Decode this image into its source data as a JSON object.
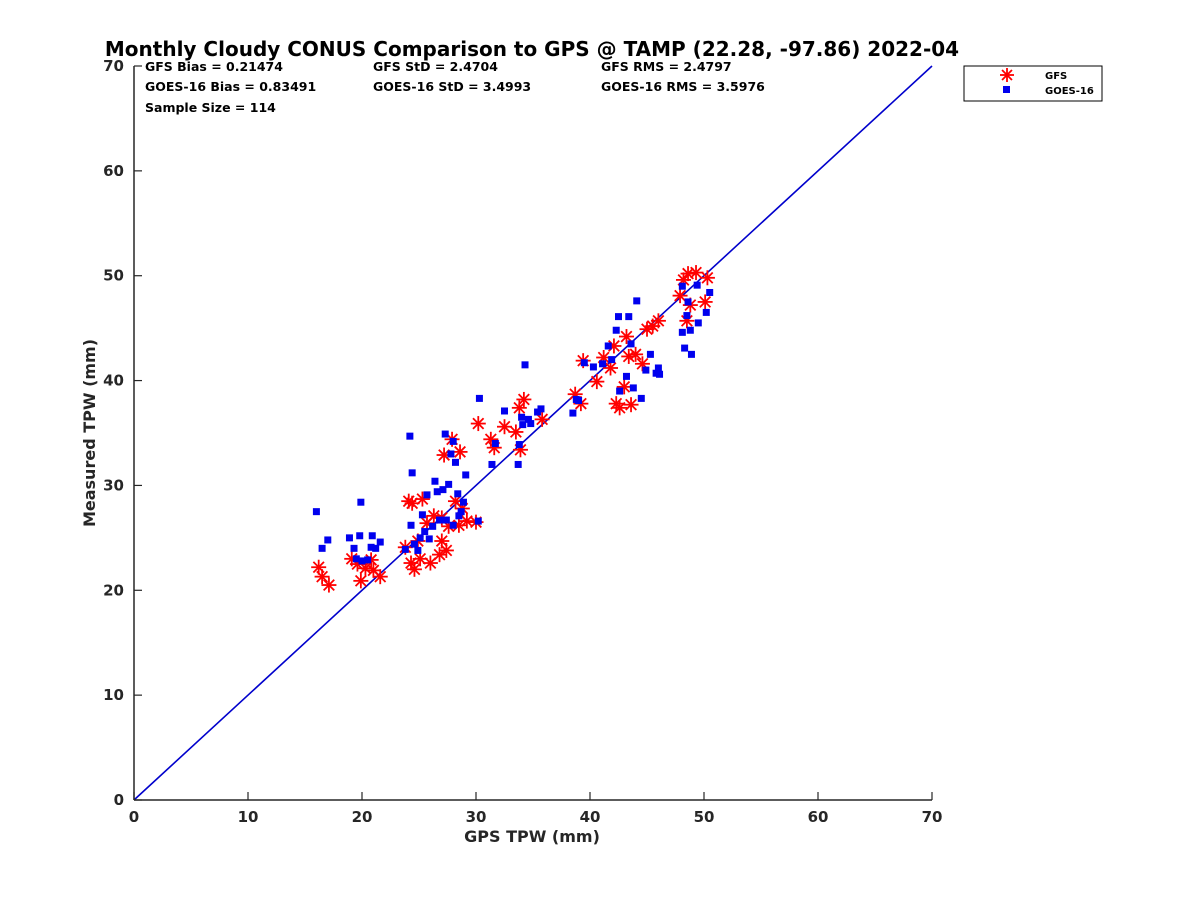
{
  "chart_data": {
    "type": "scatter",
    "title": "Monthly Cloudy CONUS Comparison to GPS @ TAMP (22.28, -97.86) 2022-04",
    "xlabel": "GPS TPW (mm)",
    "ylabel": "Measured TPW (mm)",
    "xlim": [
      0,
      70
    ],
    "ylim": [
      0,
      70
    ],
    "xticks": [
      0,
      10,
      20,
      30,
      40,
      50,
      60,
      70
    ],
    "yticks": [
      0,
      10,
      20,
      30,
      40,
      50,
      60,
      70
    ],
    "grid": false,
    "legend_position": "top-right-outside",
    "stats": [
      "GFS Bias = 0.21474",
      "GFS StD = 2.4704",
      "GFS RMS = 2.4797",
      "GOES-16 Bias = 0.83491",
      "GOES-16 StD = 3.4993",
      "GOES-16 RMS = 3.5976",
      "Sample Size = 114"
    ],
    "reference_line": {
      "x": [
        0,
        70
      ],
      "y": [
        0,
        70
      ],
      "color": "#0000cc"
    },
    "series": [
      {
        "name": "GFS",
        "marker": "asterisk",
        "color": "#ff0000",
        "points": [
          [
            16.2,
            22.2
          ],
          [
            16.5,
            21.3
          ],
          [
            17.1,
            20.5
          ],
          [
            19.1,
            23.0
          ],
          [
            19.6,
            22.5
          ],
          [
            19.9,
            20.9
          ],
          [
            20.3,
            22.1
          ],
          [
            20.8,
            22.9
          ],
          [
            21.0,
            21.9
          ],
          [
            21.6,
            21.3
          ],
          [
            23.8,
            24.1
          ],
          [
            24.1,
            28.5
          ],
          [
            24.3,
            22.6
          ],
          [
            24.4,
            28.3
          ],
          [
            24.6,
            22.0
          ],
          [
            24.9,
            24.7
          ],
          [
            25.1,
            23.0
          ],
          [
            25.3,
            28.7
          ],
          [
            25.7,
            26.4
          ],
          [
            26.0,
            22.6
          ],
          [
            26.3,
            27.1
          ],
          [
            26.8,
            23.4
          ],
          [
            27.0,
            24.7
          ],
          [
            27.0,
            26.9
          ],
          [
            27.2,
            32.9
          ],
          [
            27.4,
            23.8
          ],
          [
            27.6,
            26.1
          ],
          [
            27.9,
            34.4
          ],
          [
            28.2,
            28.5
          ],
          [
            28.5,
            26.2
          ],
          [
            28.6,
            33.2
          ],
          [
            28.8,
            27.8
          ],
          [
            29.2,
            26.6
          ],
          [
            30.0,
            26.5
          ],
          [
            30.2,
            35.9
          ],
          [
            31.3,
            34.4
          ],
          [
            31.6,
            33.6
          ],
          [
            32.5,
            35.6
          ],
          [
            33.5,
            35.1
          ],
          [
            33.8,
            37.4
          ],
          [
            33.9,
            33.4
          ],
          [
            34.2,
            38.2
          ],
          [
            35.8,
            36.3
          ],
          [
            38.7,
            38.7
          ],
          [
            39.2,
            37.8
          ],
          [
            39.4,
            41.9
          ],
          [
            40.6,
            39.9
          ],
          [
            41.2,
            42.2
          ],
          [
            41.8,
            41.2
          ],
          [
            42.1,
            43.3
          ],
          [
            42.3,
            37.8
          ],
          [
            42.6,
            37.4
          ],
          [
            43.0,
            39.4
          ],
          [
            43.2,
            44.2
          ],
          [
            43.4,
            42.3
          ],
          [
            43.6,
            37.7
          ],
          [
            44.0,
            42.5
          ],
          [
            44.6,
            41.6
          ],
          [
            45.0,
            44.9
          ],
          [
            45.5,
            45.2
          ],
          [
            46.0,
            45.7
          ],
          [
            47.9,
            48.1
          ],
          [
            48.2,
            49.6
          ],
          [
            48.5,
            45.7
          ],
          [
            48.6,
            50.2
          ],
          [
            48.8,
            47.2
          ],
          [
            49.3,
            50.3
          ],
          [
            50.1,
            47.5
          ],
          [
            50.3,
            49.8
          ]
        ]
      },
      {
        "name": "GOES-16",
        "marker": "square",
        "color": "#0000ee",
        "points": [
          [
            16.0,
            27.5
          ],
          [
            16.5,
            24.0
          ],
          [
            17.0,
            24.8
          ],
          [
            18.9,
            25.0
          ],
          [
            19.3,
            24.0
          ],
          [
            19.5,
            23.0
          ],
          [
            19.8,
            25.2
          ],
          [
            19.9,
            28.4
          ],
          [
            20.0,
            22.8
          ],
          [
            20.5,
            22.9
          ],
          [
            20.8,
            24.1
          ],
          [
            20.9,
            25.2
          ],
          [
            21.2,
            24.0
          ],
          [
            21.6,
            24.6
          ],
          [
            23.8,
            23.9
          ],
          [
            24.2,
            34.7
          ],
          [
            24.3,
            26.2
          ],
          [
            24.4,
            31.2
          ],
          [
            24.6,
            24.4
          ],
          [
            24.9,
            23.8
          ],
          [
            25.1,
            25.0
          ],
          [
            25.3,
            27.2
          ],
          [
            25.5,
            25.6
          ],
          [
            25.7,
            29.1
          ],
          [
            25.9,
            24.9
          ],
          [
            26.2,
            26.1
          ],
          [
            26.4,
            30.4
          ],
          [
            26.6,
            29.4
          ],
          [
            26.8,
            26.7
          ],
          [
            27.1,
            29.6
          ],
          [
            27.3,
            34.9
          ],
          [
            27.4,
            26.7
          ],
          [
            27.6,
            30.1
          ],
          [
            27.8,
            33.0
          ],
          [
            28.0,
            34.2
          ],
          [
            28.0,
            26.2
          ],
          [
            28.2,
            32.2
          ],
          [
            28.4,
            29.2
          ],
          [
            28.5,
            27.1
          ],
          [
            28.7,
            27.5
          ],
          [
            28.9,
            28.4
          ],
          [
            29.1,
            31.0
          ],
          [
            30.2,
            26.6
          ],
          [
            30.3,
            38.3
          ],
          [
            31.4,
            32.0
          ],
          [
            31.7,
            34.0
          ],
          [
            32.5,
            37.1
          ],
          [
            33.7,
            32.0
          ],
          [
            33.8,
            33.9
          ],
          [
            34.0,
            36.5
          ],
          [
            34.1,
            35.8
          ],
          [
            34.3,
            41.5
          ],
          [
            34.6,
            36.3
          ],
          [
            34.8,
            35.9
          ],
          [
            35.4,
            37.0
          ],
          [
            35.7,
            37.3
          ],
          [
            38.5,
            36.9
          ],
          [
            38.8,
            38.2
          ],
          [
            39.0,
            38.1
          ],
          [
            39.5,
            41.7
          ],
          [
            40.3,
            41.3
          ],
          [
            41.1,
            41.6
          ],
          [
            41.6,
            43.3
          ],
          [
            41.9,
            42.0
          ],
          [
            42.3,
            44.8
          ],
          [
            42.5,
            46.1
          ],
          [
            42.6,
            39.0
          ],
          [
            43.2,
            40.4
          ],
          [
            43.4,
            46.1
          ],
          [
            43.6,
            43.5
          ],
          [
            43.8,
            39.3
          ],
          [
            44.1,
            47.6
          ],
          [
            44.5,
            38.3
          ],
          [
            44.9,
            41.0
          ],
          [
            45.3,
            42.5
          ],
          [
            45.8,
            40.7
          ],
          [
            46.0,
            41.2
          ],
          [
            46.1,
            40.6
          ],
          [
            48.1,
            49.0
          ],
          [
            48.1,
            44.6
          ],
          [
            48.3,
            43.1
          ],
          [
            48.5,
            46.2
          ],
          [
            48.6,
            47.5
          ],
          [
            48.8,
            44.8
          ],
          [
            48.9,
            42.5
          ],
          [
            49.4,
            49.1
          ],
          [
            49.5,
            45.5
          ],
          [
            50.2,
            46.5
          ],
          [
            50.5,
            48.4
          ]
        ]
      }
    ]
  }
}
